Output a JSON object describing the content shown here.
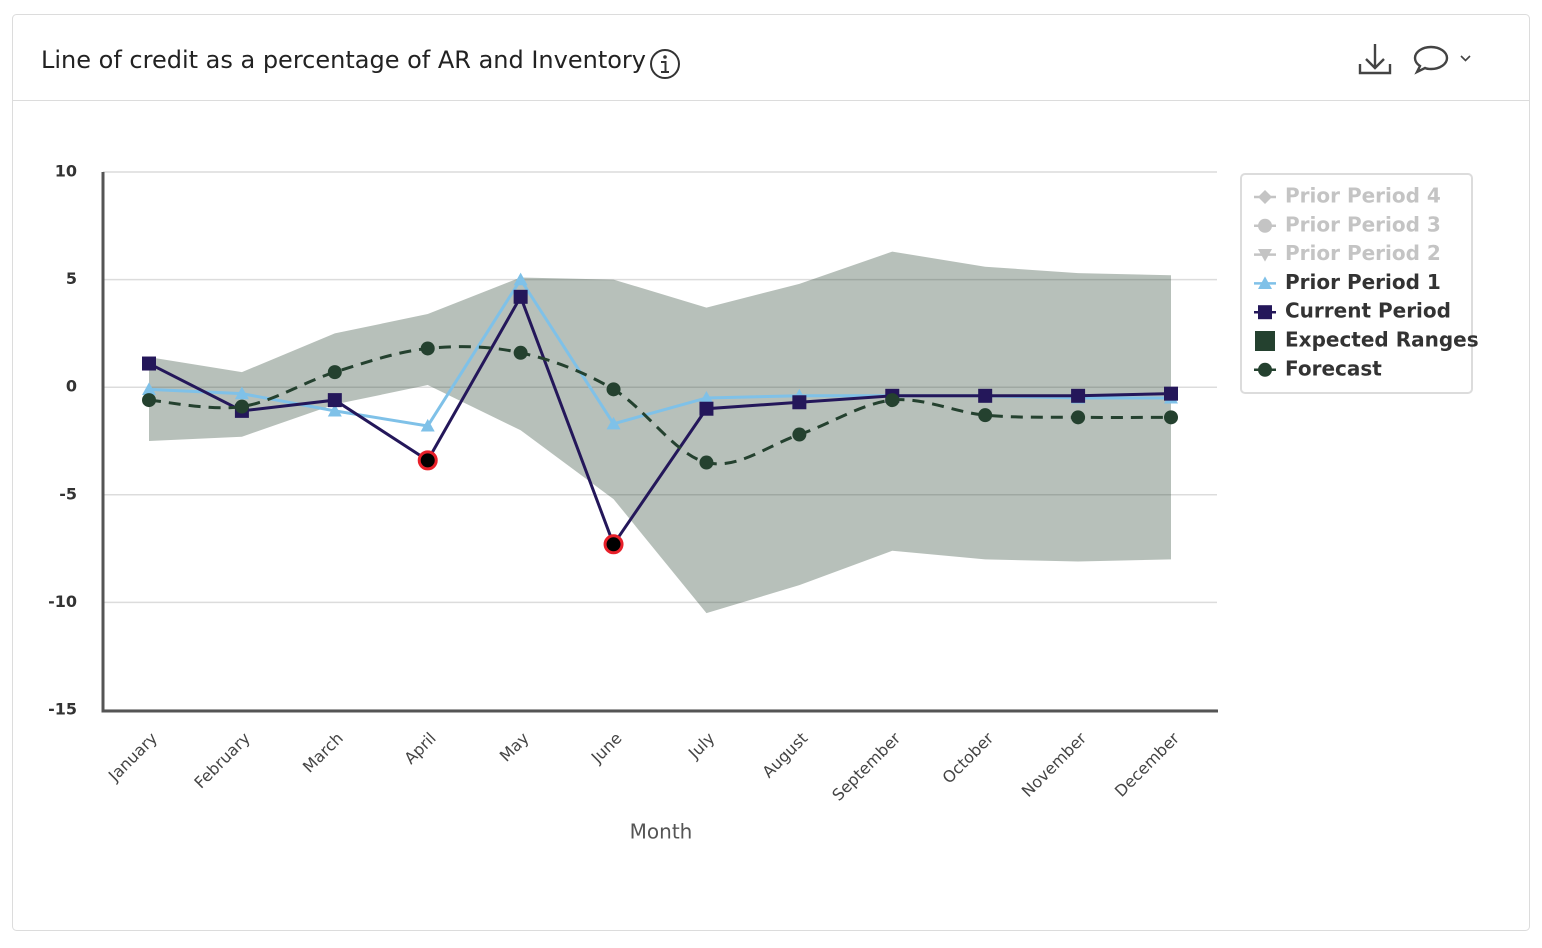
{
  "chart_data": {
    "type": "line",
    "title": "Line of credit as a percentage of AR and Inventory",
    "xlabel": "Month",
    "categories": [
      "January",
      "February",
      "March",
      "April",
      "May",
      "June",
      "July",
      "August",
      "September",
      "October",
      "November",
      "December"
    ],
    "ylim": [
      -15,
      10
    ],
    "yticks": [
      10,
      5,
      0,
      -5,
      -10,
      -15
    ],
    "grid": true,
    "legend": "right",
    "series": [
      {
        "name": "Prior Period 4",
        "color": "#c4c4c4",
        "marker": "diamond",
        "hidden": true
      },
      {
        "name": "Prior Period 3",
        "color": "#c4c4c4",
        "marker": "circle",
        "hidden": true
      },
      {
        "name": "Prior Period 2",
        "color": "#c4c4c4",
        "marker": "triangle-down",
        "hidden": true
      },
      {
        "name": "Prior Period 1",
        "color": "#7fc1e8",
        "marker": "triangle",
        "values": [
          -0.1,
          -0.3,
          -1.1,
          -1.8,
          5.0,
          -1.7,
          -0.5,
          -0.4,
          -0.4,
          -0.4,
          -0.5,
          -0.5
        ]
      },
      {
        "name": "Current Period",
        "color": "#24175a",
        "marker": "square",
        "highlight_outliers": true,
        "outlier_color": "#e8202a",
        "values": [
          1.1,
          -1.1,
          -0.6,
          -3.4,
          4.2,
          -7.3,
          -1.0,
          -0.7,
          -0.4,
          -0.4,
          -0.4,
          -0.3
        ]
      },
      {
        "name": "Expected Ranges",
        "color": "#24412f",
        "marker": "rect",
        "opacity": 0.33,
        "upper": [
          1.4,
          0.7,
          2.5,
          3.4,
          5.1,
          5.0,
          3.7,
          4.8,
          6.3,
          5.6,
          5.3,
          5.2
        ],
        "lower": [
          -2.5,
          -2.3,
          -0.8,
          0.1,
          -2.0,
          -5.2,
          -10.5,
          -9.2,
          -7.6,
          -8.0,
          -8.1,
          -8.0
        ]
      },
      {
        "name": "Forecast",
        "color": "#24412f",
        "marker": "circle",
        "dash": true,
        "smooth": true,
        "values": [
          -0.6,
          -0.9,
          0.7,
          1.8,
          1.6,
          -0.1,
          -3.5,
          -2.2,
          -0.6,
          -1.3,
          -1.4,
          -1.4
        ]
      }
    ]
  }
}
